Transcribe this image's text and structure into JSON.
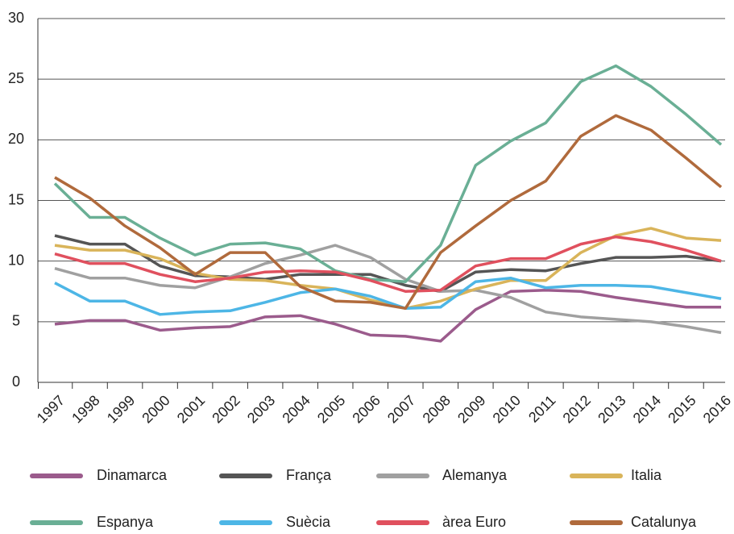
{
  "chart_data": {
    "type": "line",
    "categories": [
      "1997",
      "1998",
      "1999",
      "2000",
      "2001",
      "2002",
      "2003",
      "2004",
      "2005",
      "2006",
      "2007",
      "2008",
      "2009",
      "2010",
      "2011",
      "2012",
      "2013",
      "2014",
      "2015",
      "2016"
    ],
    "series": [
      {
        "name": "Dinamarca",
        "color": "#9b5b8c",
        "values": [
          4.8,
          5.1,
          5.1,
          4.3,
          4.5,
          4.6,
          5.4,
          5.5,
          4.8,
          3.9,
          3.8,
          3.4,
          6.0,
          7.5,
          7.6,
          7.5,
          7.0,
          6.6,
          6.2,
          6.2
        ]
      },
      {
        "name": "França",
        "color": "#555555",
        "values": [
          12.1,
          11.4,
          11.4,
          9.6,
          8.8,
          8.7,
          8.5,
          8.9,
          8.9,
          8.9,
          8.0,
          7.5,
          9.1,
          9.3,
          9.2,
          9.8,
          10.3,
          10.3,
          10.4,
          10.0
        ]
      },
      {
        "name": "Alemanya",
        "color": "#a0a0a0",
        "values": [
          9.4,
          8.6,
          8.6,
          8.0,
          7.8,
          8.7,
          9.8,
          10.5,
          11.3,
          10.3,
          8.5,
          7.5,
          7.6,
          7.0,
          5.8,
          5.4,
          5.2,
          5.0,
          4.6,
          4.1
        ]
      },
      {
        "name": "Italia",
        "color": "#d9b45a",
        "values": [
          11.3,
          10.9,
          10.9,
          10.2,
          9.0,
          8.5,
          8.4,
          8.0,
          7.7,
          6.8,
          6.1,
          6.7,
          7.7,
          8.4,
          8.4,
          10.7,
          12.1,
          12.7,
          11.9,
          11.7
        ]
      },
      {
        "name": "Espanya",
        "color": "#6aaf95",
        "values": [
          16.4,
          13.6,
          13.6,
          11.9,
          10.5,
          11.4,
          11.5,
          11.0,
          9.2,
          8.5,
          8.3,
          11.3,
          17.9,
          19.9,
          21.4,
          24.8,
          26.1,
          24.4,
          22.1,
          19.6
        ]
      },
      {
        "name": "Suècia",
        "color": "#4db6e6",
        "values": [
          8.2,
          6.7,
          6.7,
          5.6,
          5.8,
          5.9,
          6.6,
          7.4,
          7.7,
          7.1,
          6.1,
          6.2,
          8.3,
          8.6,
          7.8,
          8.0,
          8.0,
          7.9,
          7.4,
          6.9
        ]
      },
      {
        "name": "àrea Euro",
        "color": "#e0505e",
        "values": [
          10.6,
          9.8,
          9.8,
          8.9,
          8.3,
          8.6,
          9.1,
          9.2,
          9.1,
          8.4,
          7.5,
          7.6,
          9.6,
          10.2,
          10.2,
          11.4,
          12.0,
          11.6,
          10.9,
          10.0
        ]
      },
      {
        "name": "Catalunya",
        "color": "#b06a3c",
        "values": [
          16.9,
          15.2,
          12.9,
          11.1,
          8.9,
          10.7,
          10.7,
          7.9,
          6.7,
          6.6,
          6.1,
          10.7,
          12.9,
          15.0,
          16.6,
          20.3,
          22.0,
          20.8,
          18.5,
          16.1
        ]
      }
    ],
    "ylim": [
      0,
      30
    ],
    "yticks": [
      0,
      5,
      10,
      15,
      20,
      25,
      30
    ],
    "grid": true
  }
}
